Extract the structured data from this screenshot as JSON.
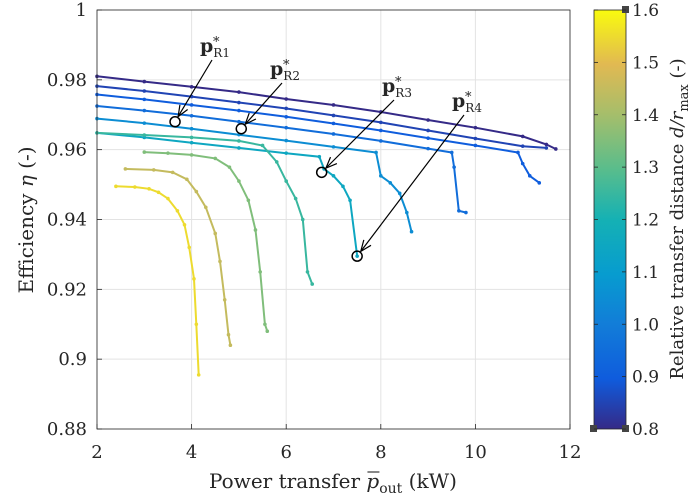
{
  "chart_data": {
    "type": "line",
    "title": "",
    "xlabel": {
      "main": "Power transfer ",
      "var": "p",
      "sub": "out",
      "unit": " (kW)"
    },
    "ylabel": {
      "main": "Efficiency ",
      "var": "η",
      "unit": " (-)"
    },
    "xlim": [
      2,
      12
    ],
    "ylim": [
      0.88,
      1.0
    ],
    "xticks": [
      "2",
      "4",
      "6",
      "8",
      "10",
      "12"
    ],
    "yticks": [
      "0.88",
      "0.9",
      "0.92",
      "0.94",
      "0.96",
      "0.98",
      "1"
    ],
    "grid": true,
    "colorbar": {
      "label": {
        "main": "Relative transfer distance ",
        "var": "d/r",
        "sub": "max",
        "unit": " (-)"
      },
      "range": [
        0.8,
        1.6
      ],
      "ticks": [
        "0.8",
        "0.9",
        "1.0",
        "1.1",
        "1.2",
        "1.3",
        "1.4",
        "1.5",
        "1.6"
      ],
      "colormap": "parula"
    },
    "series": [
      {
        "d": 0.8,
        "x": [
          2.0,
          3.0,
          4.0,
          5.0,
          6.0,
          7.0,
          8.0,
          9.0,
          10.0,
          11.0,
          11.5,
          11.7
        ],
        "y": [
          0.981,
          0.9795,
          0.978,
          0.9765,
          0.9745,
          0.9728,
          0.9708,
          0.9685,
          0.9663,
          0.9638,
          0.9615,
          0.9602
        ]
      },
      {
        "d": 0.85,
        "x": [
          2.0,
          3.0,
          4.0,
          5.0,
          6.0,
          7.0,
          8.0,
          9.0,
          10.0,
          11.0,
          11.5
        ],
        "y": [
          0.9782,
          0.9768,
          0.9752,
          0.9735,
          0.9718,
          0.9698,
          0.9678,
          0.9655,
          0.9632,
          0.961,
          0.9605
        ]
      },
      {
        "d": 0.9,
        "x": [
          2.0,
          3.0,
          4.0,
          5.0,
          6.0,
          7.0,
          8.0,
          9.0,
          10.0,
          10.9,
          11.0,
          11.15,
          11.35
        ],
        "y": [
          0.9758,
          0.9744,
          0.9728,
          0.9712,
          0.9694,
          0.9675,
          0.9655,
          0.9633,
          0.9612,
          0.9592,
          0.956,
          0.9525,
          0.9505
        ]
      },
      {
        "d": 0.95,
        "x": [
          2.0,
          3.0,
          4.0,
          5.0,
          6.0,
          7.0,
          8.0,
          9.0,
          9.5,
          9.55,
          9.65,
          9.8
        ],
        "y": [
          0.9725,
          0.9712,
          0.9697,
          0.968,
          0.9663,
          0.9645,
          0.9625,
          0.9603,
          0.9592,
          0.955,
          0.9425,
          0.942
        ]
      },
      {
        "d": 1.05,
        "x": [
          2.0,
          3.0,
          4.0,
          5.0,
          6.0,
          7.0,
          7.9,
          8.0,
          8.2,
          8.4,
          8.55,
          8.65
        ],
        "y": [
          0.9689,
          0.9676,
          0.966,
          0.9643,
          0.9626,
          0.9608,
          0.9592,
          0.9525,
          0.9505,
          0.9475,
          0.942,
          0.9365
        ]
      },
      {
        "d": 1.15,
        "x": [
          2.0,
          3.0,
          4.0,
          5.0,
          6.0,
          6.7,
          6.8,
          7.0,
          7.2,
          7.35,
          7.5
        ],
        "y": [
          0.9648,
          0.9635,
          0.962,
          0.9605,
          0.959,
          0.958,
          0.9545,
          0.9525,
          0.9495,
          0.9455,
          0.9295
        ]
      },
      {
        "d": 1.25,
        "x": [
          2.0,
          3.0,
          4.0,
          5.0,
          5.5,
          5.8,
          6.0,
          6.2,
          6.35,
          6.45,
          6.55
        ],
        "y": [
          0.9648,
          0.9642,
          0.9635,
          0.9625,
          0.9612,
          0.9565,
          0.951,
          0.946,
          0.94,
          0.925,
          0.9215
        ]
      },
      {
        "d": 1.35,
        "x": [
          3.0,
          3.5,
          4.0,
          4.5,
          4.8,
          5.0,
          5.2,
          5.35,
          5.45,
          5.55,
          5.6
        ],
        "y": [
          0.9593,
          0.959,
          0.9585,
          0.9575,
          0.955,
          0.951,
          0.9455,
          0.937,
          0.925,
          0.91,
          0.908
        ]
      },
      {
        "d": 1.45,
        "x": [
          2.6,
          3.2,
          3.6,
          3.9,
          4.1,
          4.3,
          4.5,
          4.6,
          4.7,
          4.78,
          4.82
        ],
        "y": [
          0.9545,
          0.9542,
          0.9535,
          0.9515,
          0.948,
          0.9435,
          0.936,
          0.928,
          0.917,
          0.907,
          0.904
        ]
      },
      {
        "d": 1.55,
        "x": [
          2.4,
          2.8,
          3.1,
          3.3,
          3.5,
          3.7,
          3.85,
          3.95,
          4.05,
          4.1,
          4.15
        ],
        "y": [
          0.9495,
          0.9493,
          0.9488,
          0.9478,
          0.946,
          0.9425,
          0.9385,
          0.932,
          0.923,
          0.91,
          0.8955
        ]
      }
    ],
    "annotations": [
      {
        "label": "p",
        "sub": "R1",
        "x": 3.65,
        "y": 0.968
      },
      {
        "label": "p",
        "sub": "R2",
        "x": 5.05,
        "y": 0.966
      },
      {
        "label": "p",
        "sub": "R3",
        "x": 6.75,
        "y": 0.9535
      },
      {
        "label": "p",
        "sub": "R4",
        "x": 7.5,
        "y": 0.9295
      }
    ]
  }
}
